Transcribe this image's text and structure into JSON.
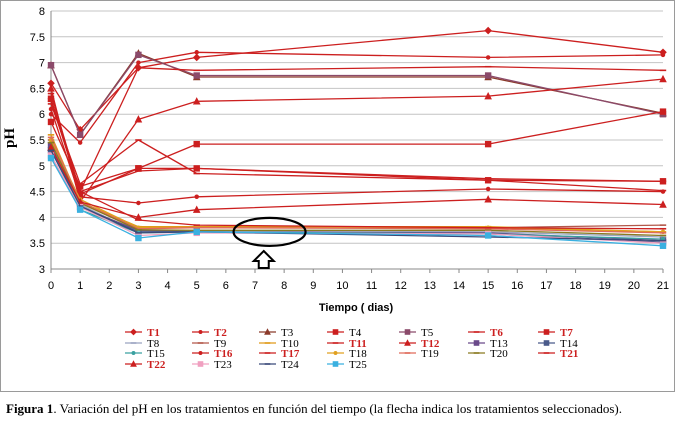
{
  "chart_data": {
    "type": "line",
    "xlabel": "Tiempo ( dias)",
    "ylabel": "pH",
    "x_ticks": [
      0,
      1,
      2,
      3,
      4,
      5,
      6,
      7,
      8,
      9,
      10,
      11,
      12,
      13,
      14,
      15,
      16,
      17,
      18,
      19,
      20,
      21
    ],
    "y_ticks": [
      "3",
      "3.5",
      "4",
      "4.5",
      "5",
      "5.5",
      "6",
      "6.5",
      "7",
      "7.5",
      "8"
    ],
    "xlim": [
      0,
      21
    ],
    "ylim": [
      3,
      8
    ],
    "grid": "horizontal",
    "legend_position": "bottom",
    "x": [
      0,
      1,
      3,
      5,
      15,
      21
    ],
    "series": [
      {
        "name": "T1",
        "bold": true,
        "color": "#cc1f1f",
        "marker": "diamond",
        "values": [
          6.6,
          5.7,
          6.9,
          7.1,
          7.62,
          7.2
        ]
      },
      {
        "name": "T2",
        "bold": true,
        "color": "#cc1f1f",
        "marker": "dot",
        "values": [
          6.0,
          5.45,
          7.0,
          7.2,
          7.1,
          7.15
        ]
      },
      {
        "name": "T3",
        "bold": false,
        "color": "#8b3a2a",
        "marker": "triangle",
        "values": [
          6.95,
          5.6,
          7.18,
          6.72,
          6.72,
          6.02
        ]
      },
      {
        "name": "T4",
        "bold": false,
        "color": "#cc1f1f",
        "marker": "square",
        "values": [
          5.85,
          4.6,
          4.95,
          4.95,
          4.72,
          4.7
        ]
      },
      {
        "name": "T5",
        "bold": false,
        "color": "#8b4a6a",
        "marker": "square",
        "values": [
          6.95,
          5.6,
          7.15,
          6.75,
          6.75,
          6.0
        ]
      },
      {
        "name": "T6",
        "bold": true,
        "color": "#cc1f1f",
        "marker": "dash",
        "values": [
          6.3,
          4.5,
          6.9,
          6.85,
          6.92,
          6.85
        ]
      },
      {
        "name": "T7",
        "bold": true,
        "color": "#cc1f1f",
        "marker": "square",
        "values": [
          6.3,
          4.45,
          4.95,
          5.42,
          5.42,
          6.05
        ]
      },
      {
        "name": "T8",
        "bold": false,
        "color": "#9aa3c0",
        "marker": "dash",
        "values": [
          5.3,
          4.25,
          3.7,
          3.75,
          3.72,
          3.62
        ]
      },
      {
        "name": "T9",
        "bold": false,
        "color": "#b3584a",
        "marker": "dash",
        "values": [
          5.5,
          4.3,
          3.8,
          3.82,
          3.8,
          3.85
        ]
      },
      {
        "name": "T10",
        "bold": false,
        "color": "#e09a1a",
        "marker": "dash",
        "values": [
          5.6,
          4.3,
          3.82,
          3.82,
          3.82,
          3.72
        ]
      },
      {
        "name": "T11",
        "bold": true,
        "color": "#cc1f1f",
        "marker": "dash",
        "values": [
          6.2,
          4.65,
          5.5,
          4.85,
          4.72,
          4.52
        ]
      },
      {
        "name": "T12",
        "bold": true,
        "color": "#cc1f1f",
        "marker": "triangle",
        "values": [
          6.5,
          4.3,
          5.9,
          6.25,
          6.35,
          6.68
        ]
      },
      {
        "name": "T13",
        "bold": false,
        "color": "#6a4a8a",
        "marker": "square",
        "values": [
          5.4,
          4.2,
          3.75,
          3.72,
          3.7,
          3.55
        ]
      },
      {
        "name": "T14",
        "bold": false,
        "color": "#4a5a8a",
        "marker": "square",
        "values": [
          5.3,
          4.2,
          3.72,
          3.72,
          3.68,
          3.52
        ]
      },
      {
        "name": "T15",
        "bold": false,
        "color": "#3aa0a0",
        "marker": "dot",
        "values": [
          5.2,
          4.15,
          3.7,
          3.72,
          3.68,
          3.58
        ]
      },
      {
        "name": "T16",
        "bold": true,
        "color": "#cc1f1f",
        "marker": "dot",
        "values": [
          6.1,
          4.4,
          4.28,
          4.4,
          4.55,
          4.5
        ]
      },
      {
        "name": "T17",
        "bold": true,
        "color": "#cc1f1f",
        "marker": "dash",
        "values": [
          6.4,
          4.5,
          4.9,
          4.95,
          4.75,
          4.7
        ]
      },
      {
        "name": "T18",
        "bold": false,
        "color": "#e0a020",
        "marker": "dot",
        "values": [
          5.5,
          4.35,
          3.8,
          3.8,
          3.8,
          3.72
        ]
      },
      {
        "name": "T19",
        "bold": false,
        "color": "#e06a5a",
        "marker": "dash",
        "values": [
          5.55,
          4.3,
          3.78,
          3.8,
          3.78,
          3.7
        ]
      },
      {
        "name": "T20",
        "bold": false,
        "color": "#8a7a20",
        "marker": "dash",
        "values": [
          5.45,
          4.28,
          3.76,
          3.75,
          3.75,
          3.65
        ]
      },
      {
        "name": "T21",
        "bold": true,
        "color": "#cc1f1f",
        "marker": "dash",
        "values": [
          6.25,
          4.5,
          3.95,
          3.85,
          3.8,
          3.78
        ]
      },
      {
        "name": "T22",
        "bold": true,
        "color": "#cc1f1f",
        "marker": "triangle",
        "values": [
          5.35,
          4.3,
          4.0,
          4.15,
          4.35,
          4.25
        ]
      },
      {
        "name": "T23",
        "bold": false,
        "color": "#f0a0c0",
        "marker": "square",
        "values": [
          5.2,
          4.2,
          3.65,
          3.7,
          3.68,
          3.5
        ]
      },
      {
        "name": "T24",
        "bold": false,
        "color": "#3a4a7a",
        "marker": "dash",
        "values": [
          5.3,
          4.22,
          3.7,
          3.72,
          3.62,
          3.55
        ]
      },
      {
        "name": "T25",
        "bold": false,
        "color": "#3ab0e0",
        "marker": "square",
        "values": [
          5.15,
          4.15,
          3.6,
          3.72,
          3.65,
          3.45
        ]
      }
    ],
    "annotation": {
      "ellipse_x": 7.5,
      "ellipse_y": 3.72,
      "arrow_x": 7.3
    }
  },
  "caption": {
    "label": "Figura 1",
    "text": ". Variación del pH en los tratamientos en función del tiempo (la flecha indica los tratamientos seleccionados)."
  }
}
